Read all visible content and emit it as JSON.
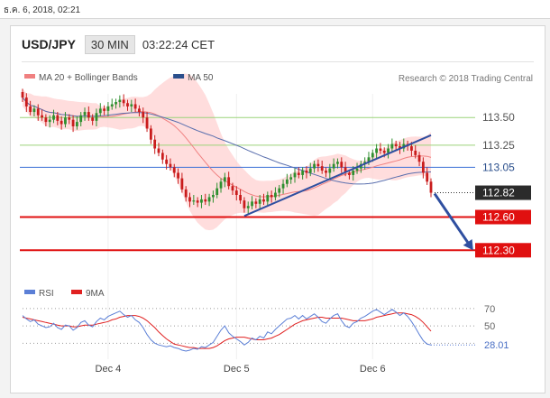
{
  "timestamp": "ธ.ค. 6, 2018, 02:21",
  "header": {
    "symbol": "USD/JPY",
    "timeframe": "30 MIN",
    "time": "03:22:24 CET"
  },
  "credit": "Research © 2018 Trading Central",
  "legend_main": [
    {
      "label": "MA 20 + Bollinger Bands",
      "color": "#f08080"
    },
    {
      "label": "MA 50",
      "color": "#2b4f8c"
    }
  ],
  "legend_rsi": [
    {
      "label": "RSI",
      "color": "#5b7fd6"
    },
    {
      "label": "9MA",
      "color": "#e02020"
    }
  ],
  "colors": {
    "up": "#2f8f2f",
    "down": "#c91c1c",
    "level": "#e01010",
    "resistance": "#9cd37a",
    "pivot": "#3a6fd6",
    "trend": "#2f4fa0",
    "bb": "#ffd2d2"
  },
  "chart_data": {
    "type": "candlestick",
    "xticks": [
      "Dec 4",
      "Dec 5",
      "Dec 6"
    ],
    "ylim": [
      112.18,
      113.73
    ],
    "levels": [
      {
        "value": 113.5,
        "label": "113.50",
        "kind": "resistance"
      },
      {
        "value": 113.25,
        "label": "113.25",
        "kind": "resistance"
      },
      {
        "value": 113.05,
        "label": "113.05",
        "kind": "pivot"
      },
      {
        "value": 112.82,
        "label": "112.82",
        "kind": "last"
      },
      {
        "value": 112.6,
        "label": "112.60",
        "kind": "support"
      },
      {
        "value": 112.3,
        "label": "112.30",
        "kind": "support"
      }
    ],
    "close": [
      113.68,
      113.6,
      113.55,
      113.58,
      113.52,
      113.5,
      113.46,
      113.48,
      113.52,
      113.47,
      113.44,
      113.5,
      113.48,
      113.42,
      113.46,
      113.52,
      113.55,
      113.5,
      113.47,
      113.54,
      113.58,
      113.56,
      113.6,
      113.62,
      113.64,
      113.66,
      113.63,
      113.6,
      113.62,
      113.58,
      113.55,
      113.5,
      113.4,
      113.3,
      113.22,
      113.18,
      113.12,
      113.08,
      113.05,
      113.0,
      112.95,
      112.85,
      112.78,
      112.74,
      112.75,
      112.73,
      112.76,
      112.74,
      112.78,
      112.8,
      112.86,
      112.92,
      112.96,
      112.88,
      112.84,
      112.8,
      112.75,
      112.68,
      112.7,
      112.74,
      112.72,
      112.76,
      112.74,
      112.8,
      112.78,
      112.82,
      112.86,
      112.9,
      112.94,
      112.96,
      113.0,
      112.98,
      113.02,
      113.0,
      113.04,
      113.08,
      113.06,
      113.02,
      113.0,
      113.04,
      113.08,
      113.1,
      113.05,
      113.0,
      112.98,
      113.02,
      113.04,
      113.08,
      113.1,
      113.14,
      113.18,
      113.22,
      113.2,
      113.18,
      113.22,
      113.26,
      113.24,
      113.22,
      113.26,
      113.24,
      113.2,
      113.16,
      113.1,
      113.0,
      112.92,
      112.82
    ],
    "rsi": {
      "levels": [
        70,
        50,
        30
      ],
      "last_label": "28.01",
      "rsi": [
        62,
        58,
        55,
        57,
        52,
        50,
        48,
        49,
        53,
        48,
        46,
        51,
        50,
        45,
        48,
        54,
        56,
        51,
        49,
        55,
        59,
        57,
        61,
        63,
        65,
        67,
        63,
        60,
        62,
        57,
        54,
        48,
        40,
        34,
        30,
        28,
        27,
        26,
        27,
        25,
        24,
        22,
        21,
        22,
        24,
        23,
        26,
        25,
        28,
        31,
        38,
        45,
        50,
        42,
        38,
        35,
        32,
        28,
        31,
        36,
        34,
        38,
        36,
        43,
        41,
        46,
        50,
        54,
        58,
        59,
        62,
        58,
        62,
        58,
        61,
        64,
        60,
        55,
        53,
        58,
        62,
        64,
        56,
        50,
        48,
        53,
        55,
        59,
        61,
        64,
        67,
        69,
        66,
        63,
        66,
        69,
        66,
        62,
        65,
        61,
        55,
        48,
        40,
        33,
        29,
        28
      ],
      "ma9": [
        60,
        59,
        58,
        57,
        56,
        55,
        54,
        53,
        52,
        51,
        50,
        50,
        50,
        49,
        49,
        50,
        51,
        51,
        51,
        52,
        53,
        54,
        55,
        57,
        58,
        60,
        61,
        62,
        62,
        62,
        61,
        59,
        56,
        52,
        48,
        43,
        39,
        35,
        32,
        29,
        28,
        27,
        26,
        25,
        25,
        24,
        24,
        24,
        24,
        25,
        27,
        30,
        33,
        35,
        36,
        37,
        37,
        37,
        36,
        35,
        34,
        34,
        34,
        35,
        36,
        38,
        40,
        43,
        46,
        49,
        52,
        54,
        56,
        57,
        58,
        59,
        60,
        60,
        59,
        59,
        59,
        59,
        59,
        58,
        57,
        56,
        56,
        56,
        56,
        57,
        58,
        60,
        61,
        62,
        63,
        64,
        65,
        65,
        65,
        64,
        63,
        61,
        58,
        54,
        49,
        44
      ]
    }
  }
}
